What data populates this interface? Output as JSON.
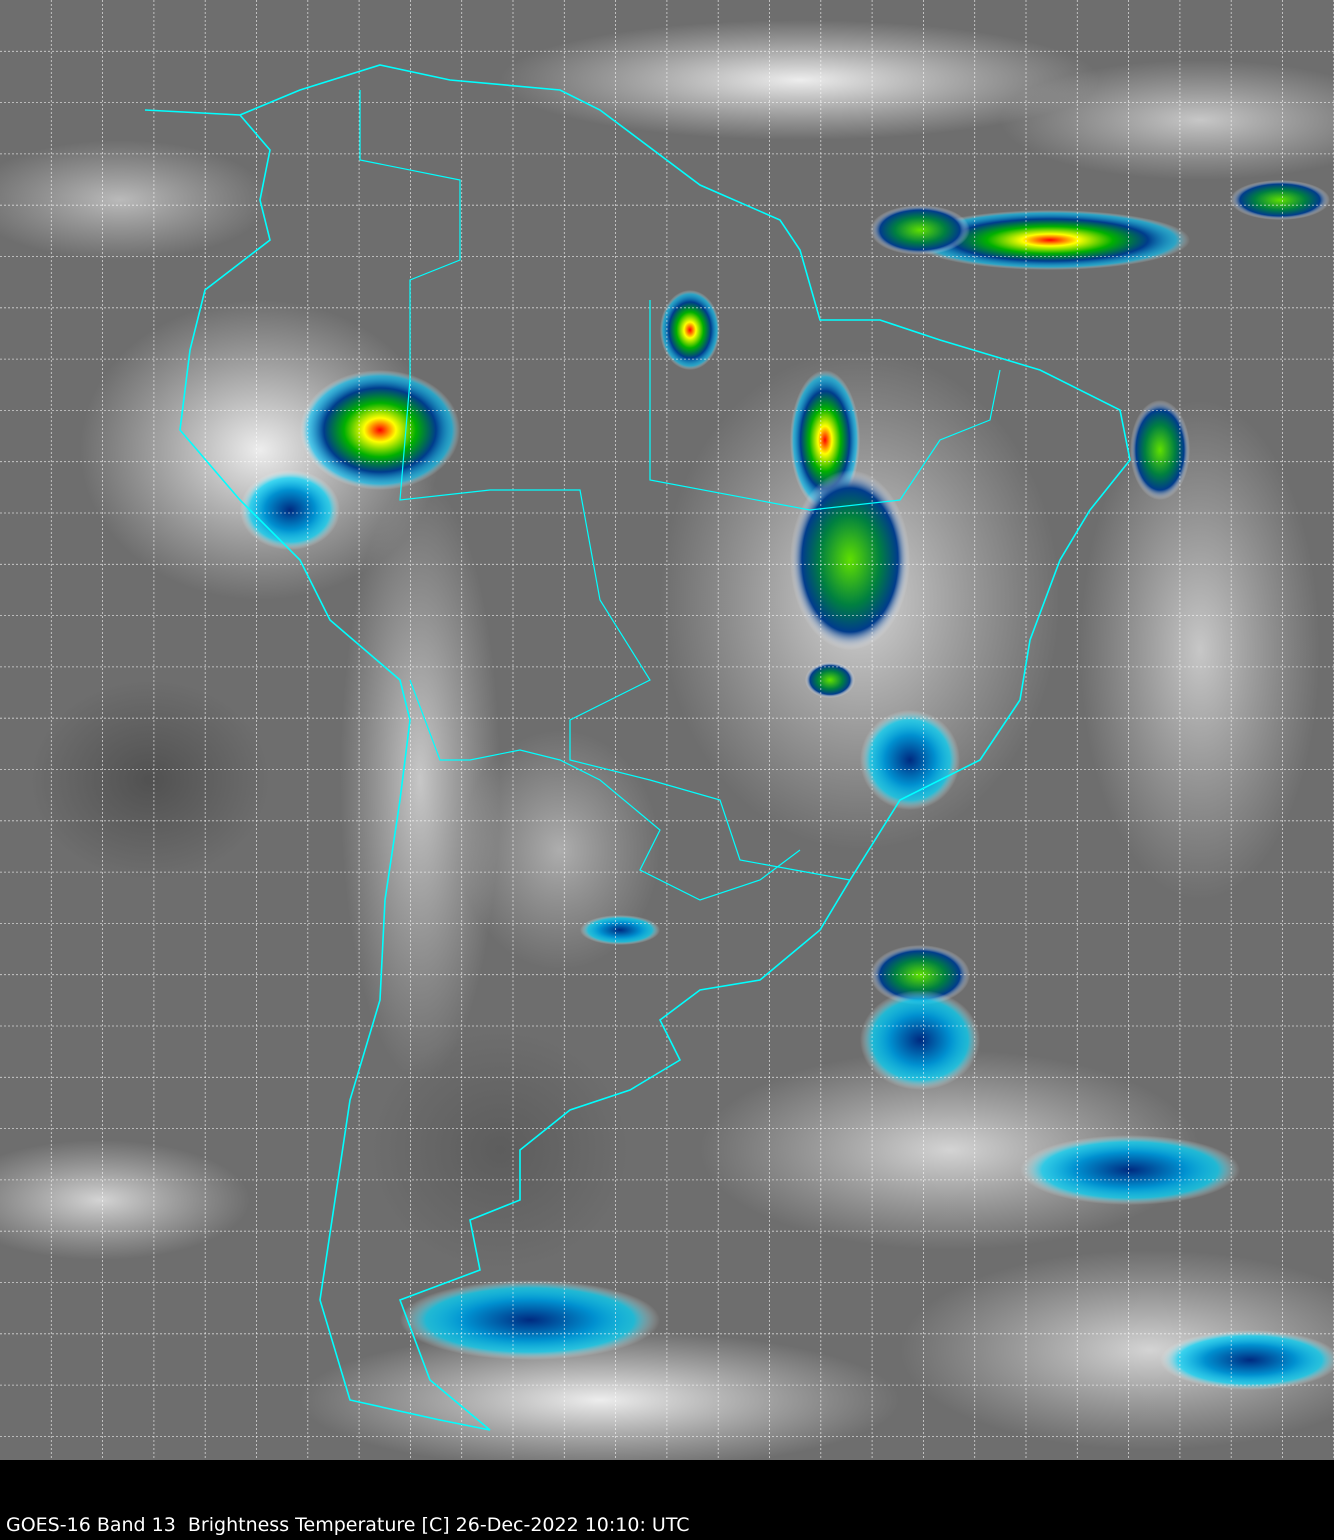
{
  "caption": "GOES-16 Band 13  Brightness Temperature [C] 26-Dec-2022 10:10: UTC",
  "colors": {
    "background": "#6e6e6e",
    "borders": "#00ffff",
    "grid": "#ffffff",
    "cold_cloud_scale": [
      "#ffffff",
      "#00c8ff",
      "#003c8c",
      "#00a000",
      "#ffff00",
      "#ff0000",
      "#600000"
    ]
  }
}
